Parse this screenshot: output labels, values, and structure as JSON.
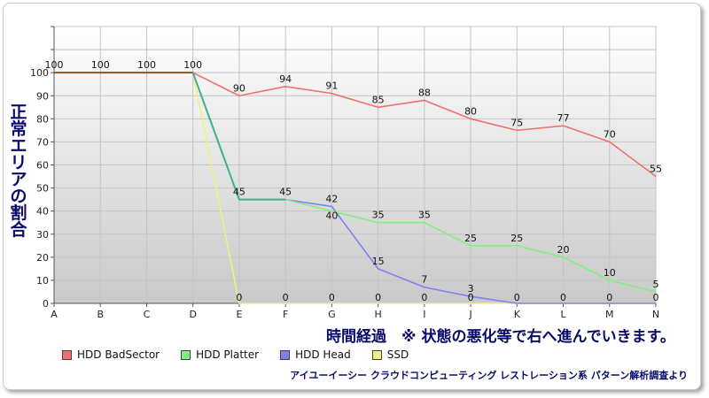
{
  "ylabel": "正常エリアの割合",
  "xlabel": "時間経過　※ 状態の悪化等で右へ進んでいきます。",
  "footer": "アイユーイーシー クラウドコンピューティング レストレーション系 パターン解析調査より",
  "chart_data": {
    "type": "line",
    "categories": [
      "A",
      "B",
      "C",
      "D",
      "E",
      "F",
      "G",
      "H",
      "I",
      "J",
      "K",
      "L",
      "M",
      "N"
    ],
    "yticks": [
      0,
      10,
      20,
      30,
      40,
      50,
      60,
      70,
      80,
      90,
      100
    ],
    "ylim": [
      0,
      120
    ],
    "grid": true,
    "legend_position": "bottom",
    "series": [
      {
        "name": "HDD BadSector",
        "color": "#f07070",
        "values": [
          100,
          100,
          100,
          100,
          90,
          94,
          91,
          85,
          88,
          80,
          75,
          77,
          70,
          55
        ]
      },
      {
        "name": "HDD Platter",
        "color": "#80f080",
        "values": [
          100,
          100,
          100,
          100,
          45,
          45,
          40,
          35,
          35,
          25,
          25,
          20,
          10,
          5
        ]
      },
      {
        "name": "HDD Head",
        "color": "#8080f0",
        "values": [
          100,
          100,
          100,
          100,
          45,
          45,
          42,
          15,
          7,
          3,
          0,
          0,
          0,
          0
        ]
      },
      {
        "name": "SSD",
        "color": "#f0f080",
        "values": [
          100,
          100,
          100,
          100,
          0,
          0,
          0,
          0,
          0,
          0,
          0,
          0,
          0,
          0
        ]
      }
    ],
    "data_labels": [
      {
        "series": 0,
        "values": [
          100,
          100,
          100,
          100,
          90,
          94,
          91,
          85,
          88,
          80,
          75,
          77,
          70,
          55
        ]
      },
      {
        "series": 1,
        "values": [
          null,
          null,
          null,
          null,
          45,
          45,
          40,
          35,
          35,
          25,
          25,
          20,
          10,
          5
        ]
      },
      {
        "series": 2,
        "values": [
          null,
          null,
          null,
          null,
          null,
          null,
          42,
          15,
          7,
          3,
          null,
          null,
          null,
          null
        ]
      },
      {
        "series": 3,
        "values": [
          null,
          null,
          null,
          null,
          0,
          0,
          0,
          0,
          0,
          0,
          0,
          0,
          0,
          0
        ]
      }
    ]
  }
}
